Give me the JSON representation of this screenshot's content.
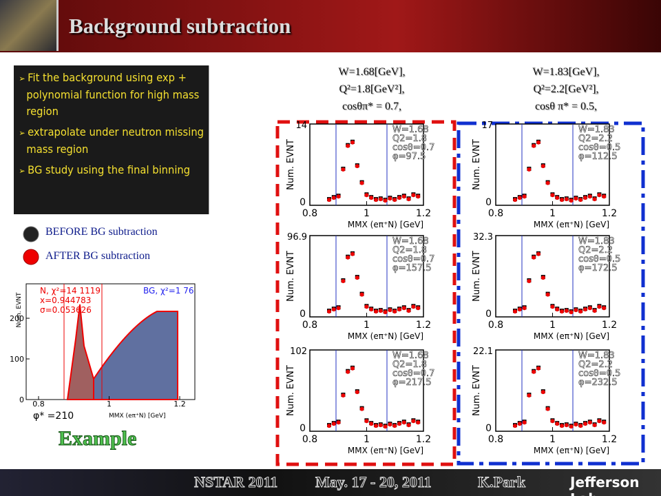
{
  "header": {
    "title": "Background subtraction"
  },
  "bullets": [
    "Fit  the  background using exp + polynomial function for high mass region",
    "extrapolate under neutron missing mass region",
    "BG study using the final binning"
  ],
  "legend": [
    "BEFORE BG subtraction",
    "AFTER BG subtraction"
  ],
  "example": {
    "label": "Example",
    "texts": [
      "N, χ²=14 1119",
      "x=0.944783",
      "σ=0.053626",
      "BG, χ²=1 76",
      "φ* =210",
      "MMX (eπ⁺N) [GeV]"
    ],
    "yaxis": "Num. EVNT",
    "xticks": [
      0.8,
      1,
      1.2
    ],
    "yticks": [
      0,
      100,
      200
    ]
  },
  "columns": [
    {
      "w": "W=1.68[GeV],",
      "q2": "Q²=1.8[GeV²],",
      "cos": "cosθπ* =    0.7,"
    },
    {
      "w": "W=1.83[GeV],",
      "q2": "Q²=2.2[GeV²],",
      "cos": "cosθ π* =    0.5,"
    }
  ],
  "panels": [
    {
      "stats": [
        "W=1.68",
        "Q2=1.8",
        "cosθ=0.7",
        "φ=97.5"
      ],
      "ymax": "14"
    },
    {
      "stats": [
        "W=1.83",
        "Q2=2.2",
        "cosθ=0.5",
        "φ=112.5"
      ],
      "ymax": "17"
    },
    {
      "stats": [
        "W=1.68",
        "Q2=1.8",
        "cosθ=0.7",
        "φ=157.5"
      ],
      "ymax": "96.9"
    },
    {
      "stats": [
        "W=1.83",
        "Q2=2.2",
        "cosθ=0.5",
        "φ=172.5"
      ],
      "ymax": "32.3"
    },
    {
      "stats": [
        "W=1.68",
        "Q2=1.8",
        "cosθ=0.7",
        "φ=217.5"
      ],
      "ymax": "102"
    },
    {
      "stats": [
        "W=1.83",
        "Q2=2.2",
        "cosθ=0.5",
        "φ=232.5"
      ],
      "ymax": "22.1"
    }
  ],
  "panel_axes": {
    "ylabel": "Num. EVNT",
    "xlabel": "MMX (eπ⁺N) [GeV]",
    "xticks": [
      0.8,
      1,
      1.2
    ],
    "y0": 0
  },
  "footer": {
    "conf": "NSTAR 2011",
    "date": "May. 17 - 20, 2011",
    "author": "K.Park",
    "lab": "Jefferson Lab"
  }
}
